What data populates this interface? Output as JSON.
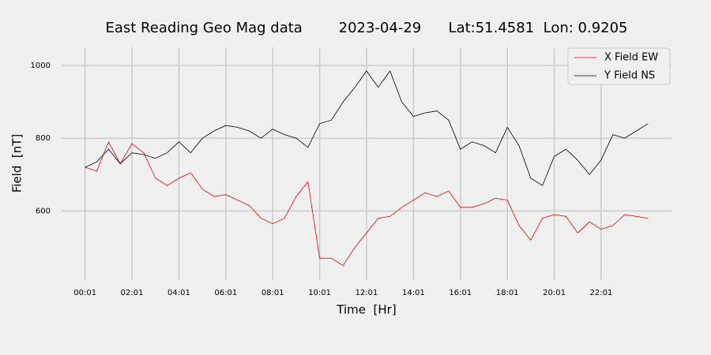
{
  "chart_data": {
    "type": "line",
    "title": "East Reading Geo Mag data        2023-04-29      Lat:51.4581  Lon: 0.9205",
    "x_label": "Time  [Hr]",
    "y_label": "Field  [nT]",
    "x": [
      0,
      0.5,
      1,
      1.5,
      2,
      2.5,
      3,
      3.5,
      4,
      4.5,
      5,
      5.5,
      6,
      6.5,
      7,
      7.5,
      8,
      8.5,
      9,
      9.5,
      10,
      10.5,
      11,
      11.5,
      12,
      12.5,
      13,
      13.5,
      14,
      14.5,
      15,
      15.5,
      16,
      16.5,
      17,
      17.5,
      18,
      18.5,
      19,
      19.5,
      20,
      20.5,
      21,
      21.5,
      22,
      22.5,
      23,
      23.5,
      24
    ],
    "series": [
      {
        "name": "X Field EW",
        "color": "#ff0000",
        "values": [
          720,
          710,
          790,
          730,
          785,
          760,
          690,
          670,
          690,
          705,
          660,
          640,
          645,
          630,
          615,
          580,
          565,
          580,
          640,
          680,
          470,
          470,
          450,
          500,
          540,
          580,
          585,
          610,
          630,
          650,
          640,
          655,
          610,
          610,
          620,
          635,
          630,
          560,
          520,
          580,
          590,
          585,
          540,
          570,
          550,
          560,
          590,
          585,
          580
        ]
      },
      {
        "name": "Y Field NS",
        "color": "#000000",
        "values": [
          720,
          735,
          770,
          730,
          760,
          755,
          745,
          760,
          790,
          760,
          800,
          820,
          835,
          830,
          820,
          800,
          825,
          810,
          800,
          775,
          840,
          850,
          900,
          940,
          985,
          940,
          985,
          900,
          860,
          870,
          875,
          850,
          770,
          790,
          780,
          760,
          830,
          780,
          690,
          670,
          750,
          770,
          740,
          700,
          740,
          810,
          800,
          820,
          840
        ]
      }
    ],
    "xlim": [
      -1,
      25
    ],
    "xticks": [
      {
        "value": 0,
        "label": "00:01"
      },
      {
        "value": 2,
        "label": "02:01"
      },
      {
        "value": 4,
        "label": "04:01"
      },
      {
        "value": 6,
        "label": "06:01"
      },
      {
        "value": 8,
        "label": "08:01"
      },
      {
        "value": 10,
        "label": "10:01"
      },
      {
        "value": 12,
        "label": "12:01"
      },
      {
        "value": 14,
        "label": "14:01"
      },
      {
        "value": 16,
        "label": "16:01"
      },
      {
        "value": 18,
        "label": "18:01"
      },
      {
        "value": 20,
        "label": "20:01"
      },
      {
        "value": 22,
        "label": "22:01"
      }
    ],
    "ylim": [
      410,
      1050
    ],
    "yticks": [
      600,
      800,
      1000
    ],
    "grid": true,
    "legend": "upper right"
  }
}
